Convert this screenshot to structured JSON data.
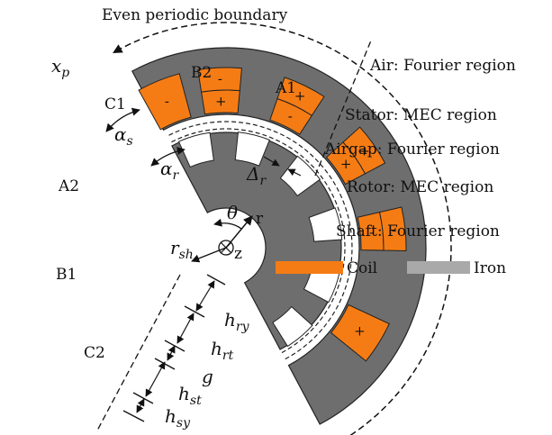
{
  "top_label": "Even periodic boundary",
  "region_labels": {
    "air": "Air: Fourier region",
    "stator": "Stator: MEC region",
    "airgap": "Airgap: Fourier region",
    "rotor": "Rotor: MEC region",
    "shaft": "Shaft: Fourier region"
  },
  "symbols": {
    "xp": "x",
    "xp_sub": "p",
    "alpha_s": "α",
    "alpha_s_sub": "s",
    "alpha_r": "α",
    "alpha_r_sub": "r",
    "delta_r": "Δ",
    "delta_r_sub": "r",
    "theta": "θ",
    "r": "r",
    "z": "z",
    "rsh": "r",
    "rsh_sub": "sh",
    "hry": "h",
    "hry_sub": "ry",
    "hrt": "h",
    "hrt_sub": "rt",
    "g": "g",
    "hst": "h",
    "hst_sub": "st",
    "hsy": "h",
    "hsy_sub": "sy"
  },
  "phase_labels": {
    "A1": "A1",
    "B2": "B2",
    "C1": "C1",
    "A2": "A2",
    "B1": "B1",
    "C2": "C2"
  },
  "slot_signs": [
    "+",
    "-",
    "-",
    "+",
    "+",
    "-",
    "+",
    "+",
    "-",
    "-",
    "+"
  ],
  "legend": {
    "coil_label": "Coil",
    "iron_label": "Iron"
  },
  "colors": {
    "iron": "#6e6e6e",
    "iron_legend": "#a9a9a9",
    "coil": "#f57c14",
    "background": "#ffffff"
  }
}
